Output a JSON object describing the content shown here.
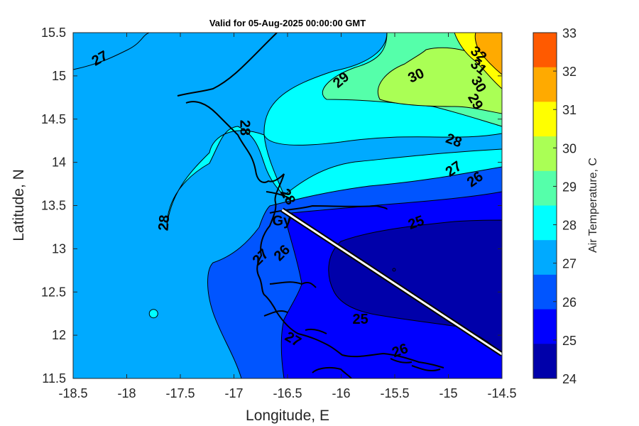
{
  "title": "Valid for 05-Aug-2025 00:00:00 GMT",
  "xlabel": "Longitude, E",
  "ylabel": "Latitude, N",
  "x_ticks": [
    "-18.5",
    "-18",
    "-17.5",
    "-17",
    "-16.5",
    "-16",
    "-15.5",
    "-15",
    "-14.5"
  ],
  "y_ticks": [
    "15.5",
    "15",
    "14.5",
    "14",
    "13.5",
    "13",
    "12.5",
    "12",
    "11.5"
  ],
  "colorbar": {
    "label": "Air Temperature, C",
    "ticks": [
      "33",
      "32",
      "31",
      "30",
      "29",
      "28",
      "27",
      "26",
      "25",
      "24"
    ],
    "colors": [
      "#ff5a00",
      "#ffaa00",
      "#ffff00",
      "#aaff55",
      "#55ffaa",
      "#00ffff",
      "#00aaff",
      "#0055ff",
      "#0000ff",
      "#0000aa"
    ]
  },
  "contour_labels": [
    {
      "text": "27",
      "lon": -18.25,
      "lat": 15.2,
      "rot": -30
    },
    {
      "text": "29",
      "lon": -16.0,
      "lat": 14.95,
      "rot": -40
    },
    {
      "text": "30",
      "lon": -15.3,
      "lat": 15.0,
      "rot": -25
    },
    {
      "text": "32",
      "lon": -14.72,
      "lat": 15.25,
      "rot": 40
    },
    {
      "text": "31",
      "lon": -14.72,
      "lat": 15.1,
      "rot": 40
    },
    {
      "text": "30",
      "lon": -14.72,
      "lat": 14.9,
      "rot": 60
    },
    {
      "text": "29",
      "lon": -14.75,
      "lat": 14.7,
      "rot": 60
    },
    {
      "text": "28",
      "lon": -14.95,
      "lat": 14.25,
      "rot": 20
    },
    {
      "text": "27",
      "lon": -14.95,
      "lat": 13.92,
      "rot": -35
    },
    {
      "text": "26",
      "lon": -14.75,
      "lat": 13.8,
      "rot": -35
    },
    {
      "text": "25",
      "lon": -15.3,
      "lat": 13.3,
      "rot": -20
    },
    {
      "text": "25",
      "lon": -15.82,
      "lat": 12.18,
      "rot": 0
    },
    {
      "text": "28",
      "lon": -16.9,
      "lat": 14.4,
      "rot": 90
    },
    {
      "text": "28",
      "lon": -16.5,
      "lat": 13.6,
      "rot": 60
    },
    {
      "text": "28",
      "lon": -17.65,
      "lat": 13.3,
      "rot": -85
    },
    {
      "text": "27",
      "lon": -16.75,
      "lat": 12.9,
      "rot": -45
    },
    {
      "text": "26",
      "lon": -16.55,
      "lat": 12.95,
      "rot": -45
    },
    {
      "text": "27",
      "lon": -16.45,
      "lat": 11.95,
      "rot": 30
    },
    {
      "text": "26",
      "lon": -15.45,
      "lat": 11.82,
      "rot": -20
    }
  ],
  "station_label": "Gy",
  "station": {
    "lon": -16.55,
    "lat": 13.32
  },
  "marker": {
    "lon": -17.75,
    "lat": 12.25
  },
  "transect": {
    "start": {
      "lon": -16.55,
      "lat": 13.45
    },
    "end": {
      "lon": -14.5,
      "lat": 11.78
    }
  }
}
